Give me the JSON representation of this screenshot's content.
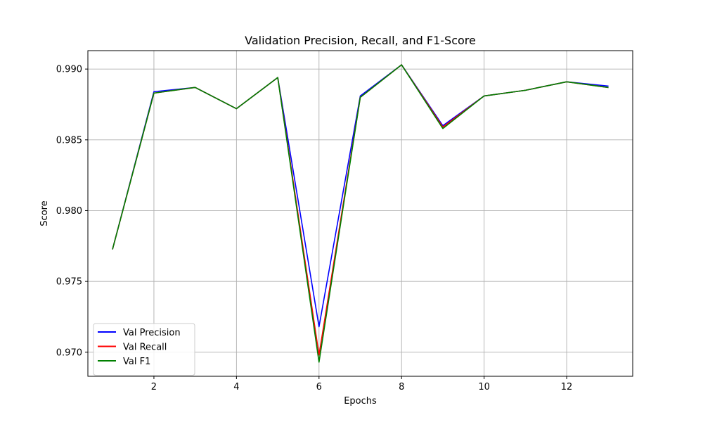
{
  "chart_data": {
    "type": "line",
    "title": "Validation Precision, Recall, and F1-Score",
    "xlabel": "Epochs",
    "ylabel": "Score",
    "xlim": [
      0.4,
      13.6
    ],
    "ylim": [
      0.9683,
      0.9913
    ],
    "xticks": [
      2,
      4,
      6,
      8,
      10,
      12
    ],
    "xtick_labels": [
      "2",
      "4",
      "6",
      "8",
      "10",
      "12"
    ],
    "yticks": [
      0.97,
      0.975,
      0.98,
      0.985,
      0.99
    ],
    "ytick_labels": [
      "0.970",
      "0.975",
      "0.980",
      "0.985",
      "0.990"
    ],
    "grid": true,
    "legend_position": "lower-left",
    "x": [
      1,
      2,
      3,
      4,
      5,
      6,
      7,
      8,
      9,
      10,
      11,
      12,
      13
    ],
    "series": [
      {
        "name": "Val Precision",
        "color": "#0000ff",
        "values": [
          0.9773,
          0.9884,
          0.9887,
          0.9872,
          0.9894,
          0.9718,
          0.9881,
          0.9903,
          0.986,
          0.9881,
          0.9885,
          0.9891,
          0.9888
        ]
      },
      {
        "name": "Val Recall",
        "color": "#ff0000",
        "values": [
          0.9773,
          0.9883,
          0.9887,
          0.9872,
          0.9894,
          0.9698,
          0.988,
          0.9903,
          0.9859,
          0.9881,
          0.9885,
          0.9891,
          0.9887
        ]
      },
      {
        "name": "Val F1",
        "color": "#008000",
        "values": [
          0.9773,
          0.9883,
          0.9887,
          0.9872,
          0.9894,
          0.9693,
          0.988,
          0.9903,
          0.9858,
          0.9881,
          0.9885,
          0.9891,
          0.9887
        ]
      }
    ]
  }
}
